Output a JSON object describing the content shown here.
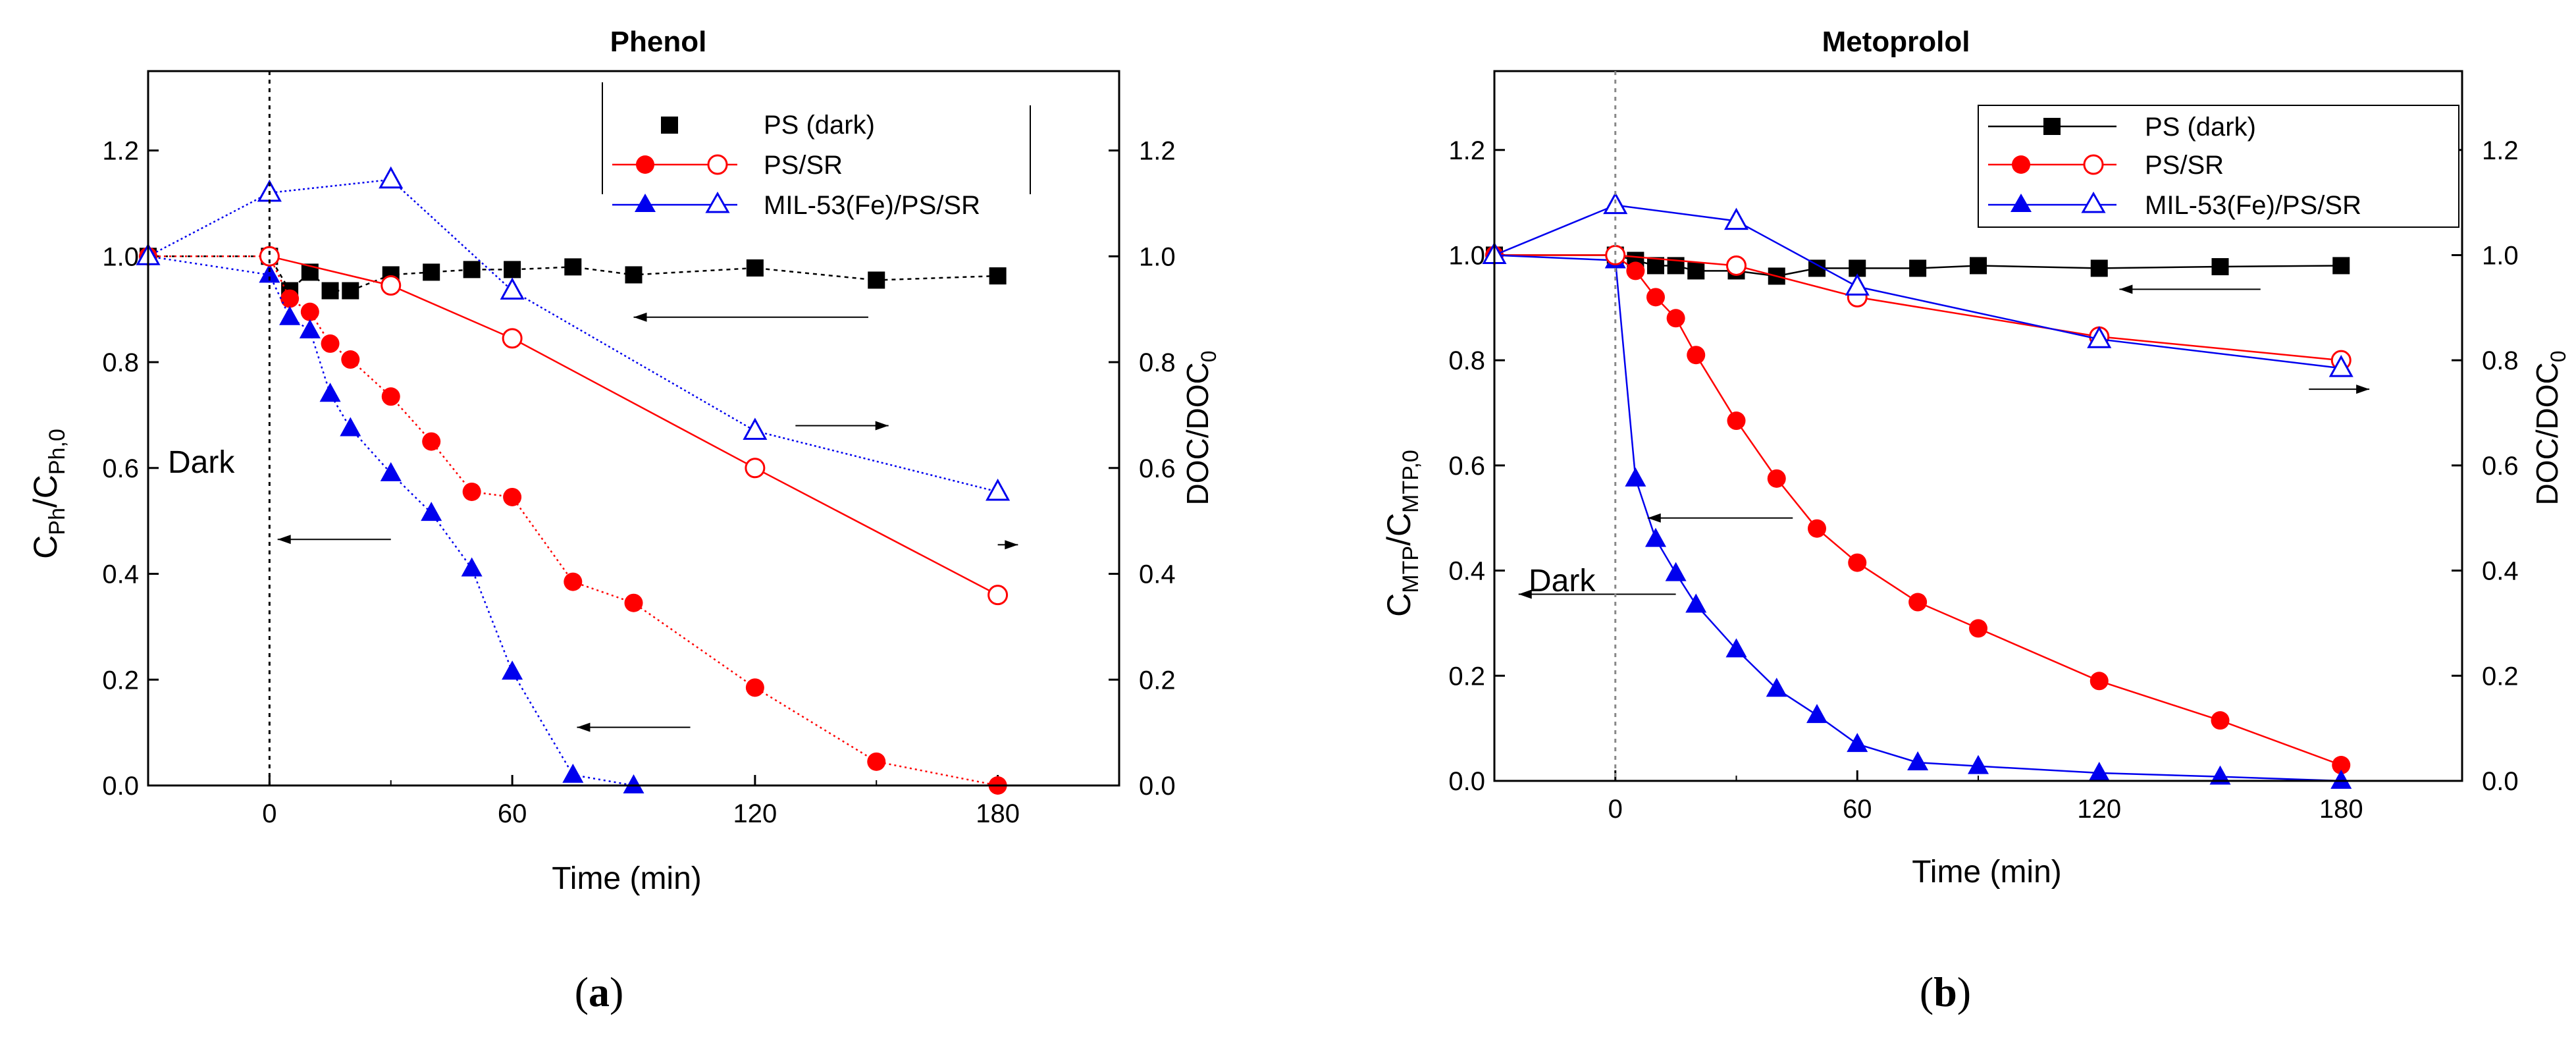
{
  "chart_data": [
    {
      "type": "line",
      "title": "Phenol",
      "xlabel": "Time (min)",
      "ylabel_left": "C_Ph/C_Ph,0",
      "ylabel_right": "DOC/DOC_0",
      "ylabel_left_main": "C",
      "ylabel_left_sub1": "Ph",
      "ylabel_left_mid": "/C",
      "ylabel_left_sub2": "Ph,0",
      "ylabel_right_main": "DOC/DOC",
      "ylabel_right_sub": "0",
      "xlim": [
        -30,
        210
      ],
      "ylim": [
        0,
        1.35
      ],
      "xticks": [
        0,
        60,
        120,
        180
      ],
      "xtick_labels": [
        "0",
        "60",
        "120",
        "180"
      ],
      "yticks": [
        0,
        0.2,
        0.4,
        0.6,
        0.8,
        1.0,
        1.2
      ],
      "ytick_labels": [
        "0.0",
        "0.2",
        "0.4",
        "0.6",
        "0.8",
        "1.0",
        "1.2"
      ],
      "annotation": "Dark",
      "panel_label": "(a)",
      "panel_letter": "a",
      "legend": [
        "PS (dark)",
        "PS/SR",
        "MIL-53(Fe)/PS/SR"
      ],
      "series": [
        {
          "name": "PS (dark)",
          "marker": "square",
          "filled": true,
          "color": "#000000",
          "dash": "6,6",
          "x": [
            -30,
            0,
            5,
            10,
            15,
            20,
            30,
            40,
            50,
            60,
            75,
            90,
            120,
            150,
            180
          ],
          "y": [
            1.0,
            1.0,
            0.935,
            0.97,
            0.935,
            0.935,
            0.965,
            0.97,
            0.975,
            0.975,
            0.98,
            0.965,
            0.978,
            0.955,
            0.963
          ]
        },
        {
          "name": "PS/SR",
          "marker": "circle",
          "filled": true,
          "color": "#ff0000",
          "dash": "3,5",
          "x": [
            -30,
            0,
            5,
            10,
            15,
            20,
            30,
            40,
            50,
            60,
            75,
            90,
            120,
            150,
            180
          ],
          "y": [
            1.0,
            1.0,
            0.92,
            0.895,
            0.835,
            0.805,
            0.735,
            0.65,
            0.555,
            0.545,
            0.385,
            0.345,
            0.185,
            0.045,
            0.0
          ]
        },
        {
          "name": "MIL-53(Fe)/PS/SR",
          "marker": "triangle",
          "filled": true,
          "color": "#0000ee",
          "dash": "3,5",
          "x": [
            -30,
            0,
            5,
            10,
            15,
            20,
            30,
            40,
            50,
            60,
            75,
            90
          ],
          "y": [
            1.0,
            0.965,
            0.885,
            0.86,
            0.74,
            0.675,
            0.59,
            0.515,
            0.41,
            0.215,
            0.02,
            0.0
          ]
        },
        {
          "name": "PS/SR (DOC)",
          "marker": "circle",
          "filled": false,
          "color": "#ff0000",
          "dash": "",
          "x": [
            0,
            30,
            60,
            120,
            180
          ],
          "y": [
            1.0,
            0.945,
            0.845,
            0.6,
            0.36
          ]
        },
        {
          "name": "MIL-53(Fe)/PS/SR (DOC)",
          "marker": "triangle",
          "filled": false,
          "color": "#0000ee",
          "dash": "3,4",
          "x": [
            -30,
            0,
            30,
            60,
            120,
            180
          ],
          "y": [
            1.0,
            1.12,
            1.145,
            0.935,
            0.67,
            0.555
          ]
        }
      ],
      "arrows": [
        {
          "from": [
            148,
            0.885
          ],
          "to": [
            90,
            0.885
          ],
          "color": "#000000"
        },
        {
          "from": [
            130,
            0.68
          ],
          "to": [
            153,
            0.68
          ],
          "color": "#000000"
        },
        {
          "from": [
            180,
            0.455
          ],
          "to": [
            185,
            0.455
          ],
          "color": "#000000"
        },
        {
          "from": [
            30,
            0.465
          ],
          "to": [
            2,
            0.465
          ],
          "color": "#000000"
        },
        {
          "from": [
            104,
            0.11
          ],
          "to": [
            76,
            0.11
          ],
          "color": "#000000"
        }
      ]
    },
    {
      "type": "line",
      "title": "Metoprolol",
      "xlabel": "Time (min)",
      "ylabel_left": "C_MTP/C_MTP,0",
      "ylabel_right": "DOC/DOC_0",
      "ylabel_left_main": "C",
      "ylabel_left_sub1": "MTP",
      "ylabel_left_mid": "/C",
      "ylabel_left_sub2": "MTP,0",
      "ylabel_right_main": "DOC/DOC",
      "ylabel_right_sub": "0",
      "xlim": [
        -30,
        210
      ],
      "ylim": [
        0,
        1.35
      ],
      "xticks": [
        0,
        60,
        120,
        180
      ],
      "xtick_labels": [
        "0",
        "60",
        "120",
        "180"
      ],
      "yticks": [
        0,
        0.2,
        0.4,
        0.6,
        0.8,
        1.0,
        1.2
      ],
      "ytick_labels": [
        "0.0",
        "0.2",
        "0.4",
        "0.6",
        "0.8",
        "1.0",
        "1.2"
      ],
      "annotation": "Dark",
      "panel_label": "(b)",
      "panel_letter": "b",
      "legend": [
        "PS (dark)",
        "PS/SR",
        "MIL-53(Fe)/PS/SR"
      ],
      "series": [
        {
          "name": "PS (dark)",
          "marker": "square",
          "filled": true,
          "color": "#000000",
          "dash": "",
          "x": [
            -30,
            0,
            5,
            10,
            15,
            20,
            30,
            40,
            50,
            60,
            75,
            90,
            120,
            150,
            180
          ],
          "y": [
            1.0,
            1.0,
            0.99,
            0.98,
            0.98,
            0.97,
            0.97,
            0.96,
            0.975,
            0.975,
            0.975,
            0.98,
            0.975,
            0.978,
            0.98
          ]
        },
        {
          "name": "PS/SR",
          "marker": "circle",
          "filled": true,
          "color": "#ff0000",
          "dash": "",
          "x": [
            -30,
            0,
            5,
            10,
            15,
            20,
            30,
            40,
            50,
            60,
            75,
            90,
            120,
            150,
            180
          ],
          "y": [
            1.0,
            1.0,
            0.97,
            0.92,
            0.88,
            0.81,
            0.685,
            0.575,
            0.48,
            0.415,
            0.34,
            0.29,
            0.19,
            0.115,
            0.03
          ]
        },
        {
          "name": "MIL-53(Fe)/PS/SR",
          "marker": "triangle",
          "filled": true,
          "color": "#0000ee",
          "dash": "",
          "x": [
            -30,
            0,
            5,
            10,
            15,
            20,
            30,
            40,
            50,
            60,
            75,
            90,
            120,
            150,
            180
          ],
          "y": [
            1.0,
            0.99,
            0.575,
            0.46,
            0.395,
            0.335,
            0.25,
            0.175,
            0.125,
            0.07,
            0.035,
            0.028,
            0.015,
            0.008,
            0.0
          ]
        },
        {
          "name": "PS/SR (DOC)",
          "marker": "circle",
          "filled": false,
          "color": "#ff0000",
          "dash": "",
          "x": [
            0,
            30,
            60,
            120,
            180
          ],
          "y": [
            1.0,
            0.98,
            0.92,
            0.845,
            0.8
          ]
        },
        {
          "name": "MIL-53(Fe)/PS/SR (DOC)",
          "marker": "triangle",
          "filled": false,
          "color": "#0000ee",
          "dash": "",
          "x": [
            -30,
            0,
            30,
            60,
            120,
            180
          ],
          "y": [
            1.0,
            1.095,
            1.065,
            0.94,
            0.84,
            0.785
          ]
        }
      ],
      "arrows": [
        {
          "from": [
            160,
            0.935
          ],
          "to": [
            125,
            0.935
          ],
          "color": "#000000"
        },
        {
          "from": [
            172,
            0.745
          ],
          "to": [
            187,
            0.745
          ],
          "color": "#000000"
        },
        {
          "from": [
            44,
            0.5
          ],
          "to": [
            8,
            0.5
          ],
          "color": "#000000"
        },
        {
          "from": [
            15,
            0.355
          ],
          "to": [
            -24,
            0.355
          ],
          "color": "#000000"
        }
      ]
    }
  ]
}
